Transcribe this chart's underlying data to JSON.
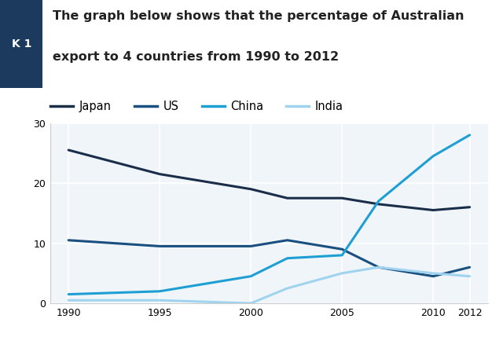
{
  "title_line1": "The graph below shows that the percentage of Australian",
  "title_line2": "export to 4 countries from 1990 to 2012",
  "sidebar_label": "K 1",
  "sidebar_color": "#1c3a5e",
  "years": [
    1990,
    1995,
    2000,
    2002,
    2005,
    2007,
    2010,
    2012
  ],
  "Japan": [
    25.5,
    21.5,
    19.0,
    17.5,
    17.5,
    16.5,
    15.5,
    16.0
  ],
  "US": [
    10.5,
    9.5,
    9.5,
    10.5,
    9.0,
    6.0,
    4.5,
    6.0
  ],
  "China": [
    1.5,
    2.0,
    4.5,
    7.5,
    8.0,
    17.0,
    24.5,
    28.0
  ],
  "India": [
    0.5,
    0.5,
    0.0,
    2.5,
    5.0,
    6.0,
    5.0,
    4.5
  ],
  "Japan_color": "#1a2e4a",
  "US_color": "#1a5080",
  "China_color": "#1e9fd4",
  "India_color": "#a0d4ee",
  "background_plot": "#f0f5fa",
  "background_fig": "#ffffff",
  "ylim": [
    0,
    30
  ],
  "yticks": [
    0,
    10,
    20,
    30
  ],
  "grid_color": "#ffffff",
  "legend_entries": [
    "Japan",
    "US",
    "China",
    "India"
  ],
  "title_fontsize": 11.5,
  "tick_fontsize": 9,
  "legend_fontsize": 10.5
}
